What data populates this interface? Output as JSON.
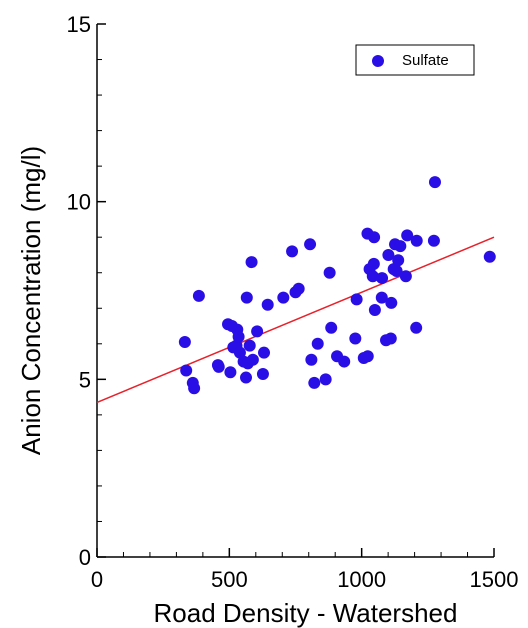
{
  "chart_data": {
    "type": "scatter",
    "title": "",
    "xlabel": "Road Density - Watershed",
    "ylabel": "Anion Concentration (mg/l)",
    "xlim": [
      0,
      1500
    ],
    "ylim": [
      0,
      15
    ],
    "xticks": [
      0,
      500,
      1000,
      1500
    ],
    "yticks": [
      0,
      5,
      10,
      15
    ],
    "grid": false,
    "legend_position": "top-right",
    "colors": {
      "points": "#2a0ee6",
      "trend_line": "#e8212a",
      "axes": "#000000",
      "background": "#ffffff"
    },
    "series": [
      {
        "name": "Sulfate",
        "points": [
          [
            332,
            6.05
          ],
          [
            337,
            5.25
          ],
          [
            362,
            4.9
          ],
          [
            367,
            4.75
          ],
          [
            385,
            7.35
          ],
          [
            457,
            5.4
          ],
          [
            460,
            5.35
          ],
          [
            495,
            6.55
          ],
          [
            504,
            5.2
          ],
          [
            510,
            6.5
          ],
          [
            515,
            5.9
          ],
          [
            527,
            5.95
          ],
          [
            530,
            6.4
          ],
          [
            535,
            6.2
          ],
          [
            540,
            5.75
          ],
          [
            554,
            5.5
          ],
          [
            563,
            5.05
          ],
          [
            566,
            7.3
          ],
          [
            570,
            5.45
          ],
          [
            577,
            5.95
          ],
          [
            584,
            8.3
          ],
          [
            589,
            5.55
          ],
          [
            605,
            6.35
          ],
          [
            627,
            5.15
          ],
          [
            631,
            5.75
          ],
          [
            645,
            7.1
          ],
          [
            704,
            7.3
          ],
          [
            737,
            8.6
          ],
          [
            750,
            7.45
          ],
          [
            762,
            7.55
          ],
          [
            805,
            8.8
          ],
          [
            810,
            5.55
          ],
          [
            821,
            4.9
          ],
          [
            834,
            6.0
          ],
          [
            864,
            5.0
          ],
          [
            879,
            8.0
          ],
          [
            885,
            6.45
          ],
          [
            907,
            5.65
          ],
          [
            934,
            5.5
          ],
          [
            976,
            6.15
          ],
          [
            981,
            7.25
          ],
          [
            1008,
            5.6
          ],
          [
            1022,
            9.1
          ],
          [
            1023,
            5.65
          ],
          [
            1030,
            8.1
          ],
          [
            1042,
            7.9
          ],
          [
            1046,
            8.25
          ],
          [
            1047,
            9.0
          ],
          [
            1050,
            6.95
          ],
          [
            1076,
            7.3
          ],
          [
            1077,
            7.85
          ],
          [
            1092,
            6.1
          ],
          [
            1101,
            8.5
          ],
          [
            1110,
            6.15
          ],
          [
            1112,
            7.15
          ],
          [
            1121,
            8.1
          ],
          [
            1126,
            8.8
          ],
          [
            1132,
            8.05
          ],
          [
            1138,
            8.35
          ],
          [
            1146,
            8.75
          ],
          [
            1167,
            7.9
          ],
          [
            1172,
            9.05
          ],
          [
            1206,
            6.45
          ],
          [
            1208,
            8.9
          ],
          [
            1273,
            8.9
          ],
          [
            1277,
            10.55
          ],
          [
            1484,
            8.45
          ]
        ]
      }
    ],
    "trend_line": {
      "x": [
        0,
        1500
      ],
      "y": [
        4.35,
        9.0
      ]
    }
  }
}
